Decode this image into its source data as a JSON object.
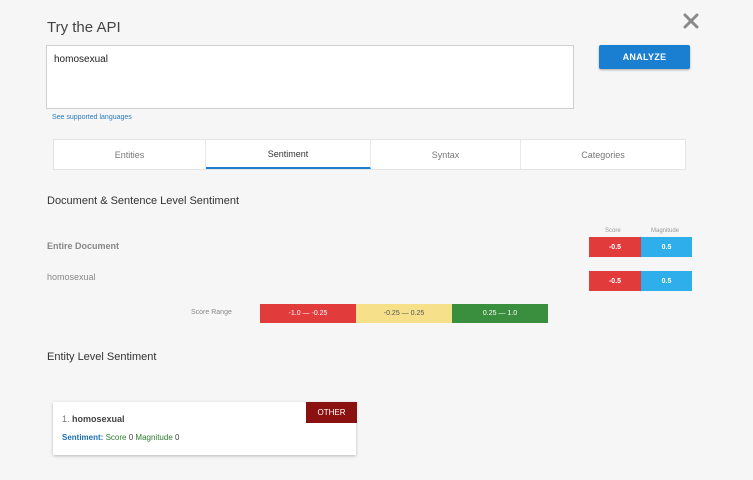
{
  "header": {
    "title": "Try the API"
  },
  "input": {
    "value": "homosexual"
  },
  "analyze_label": "ANALYZE",
  "languages_link": "See supported languages",
  "tabs": [
    {
      "label": "Entities"
    },
    {
      "label": "Sentiment"
    },
    {
      "label": "Syntax"
    },
    {
      "label": "Categories"
    }
  ],
  "active_tab": "Sentiment",
  "document_section": {
    "heading": "Document & Sentence Level Sentiment",
    "score_header": "Score",
    "magnitude_header": "Magnitude",
    "rows": [
      {
        "label": "Entire Document",
        "score": "-0.5",
        "magnitude": "0.5"
      },
      {
        "label": "homosexual",
        "score": "-0.5",
        "magnitude": "0.5"
      }
    ],
    "score_range_label": "Score Range",
    "ranges": [
      {
        "label": "-1.0 — -0.25",
        "color": "#e23b3b"
      },
      {
        "label": "-0.25 — 0.25",
        "color": "#f6e08a"
      },
      {
        "label": "0.25 — 1.0",
        "color": "#3a8f3e"
      }
    ]
  },
  "colors": {
    "score_negative": "#e23b3b",
    "magnitude": "#2eaeea",
    "accent": "#1a7fd1",
    "entity_badge": "#8b1010"
  },
  "entity_section": {
    "heading": "Entity Level Sentiment",
    "entities": [
      {
        "index": "1.",
        "name": "homosexual",
        "type": "OTHER",
        "sentiment_label": "Sentiment:",
        "score_label": "Score",
        "score": "0",
        "magnitude_label": "Magnitude",
        "magnitude": "0"
      }
    ]
  }
}
